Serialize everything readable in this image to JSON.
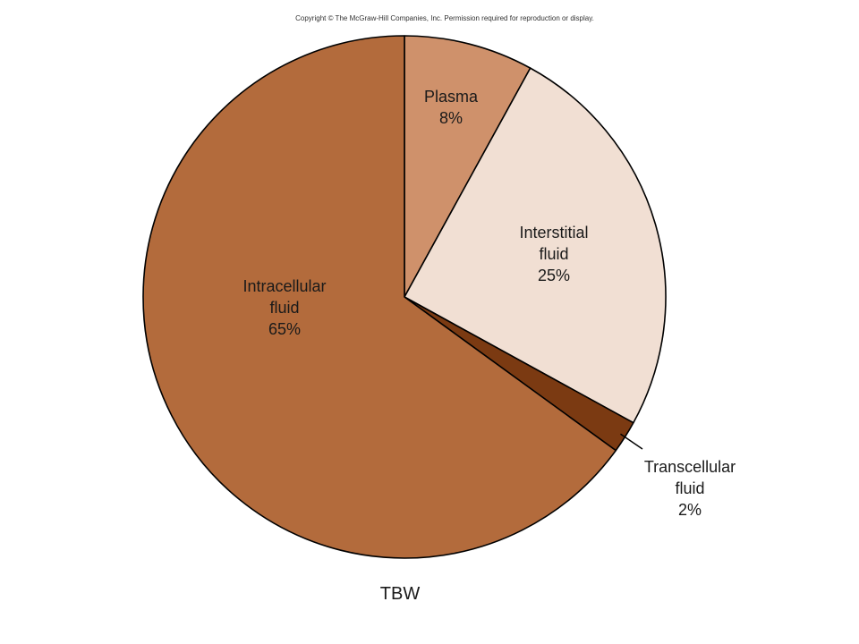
{
  "copyright": "Copyright © The McGraw-Hill Companies, Inc. Permission required for reproduction or display.",
  "chart_data": {
    "type": "pie",
    "caption": "TBW",
    "slices": [
      {
        "label_lines": [
          "Plasma",
          "8%"
        ],
        "value": 8,
        "color": "#cf916b"
      },
      {
        "label_lines": [
          "Interstitial",
          "fluid",
          "25%"
        ],
        "value": 25,
        "color": "#f1dfd3"
      },
      {
        "label_lines": [
          "Transcellular",
          "fluid",
          "2%"
        ],
        "value": 2,
        "color": "#7b3a12"
      },
      {
        "label_lines": [
          "Intracellular",
          "fluid",
          "65%"
        ],
        "value": 65,
        "color": "#b36b3c"
      }
    ]
  }
}
